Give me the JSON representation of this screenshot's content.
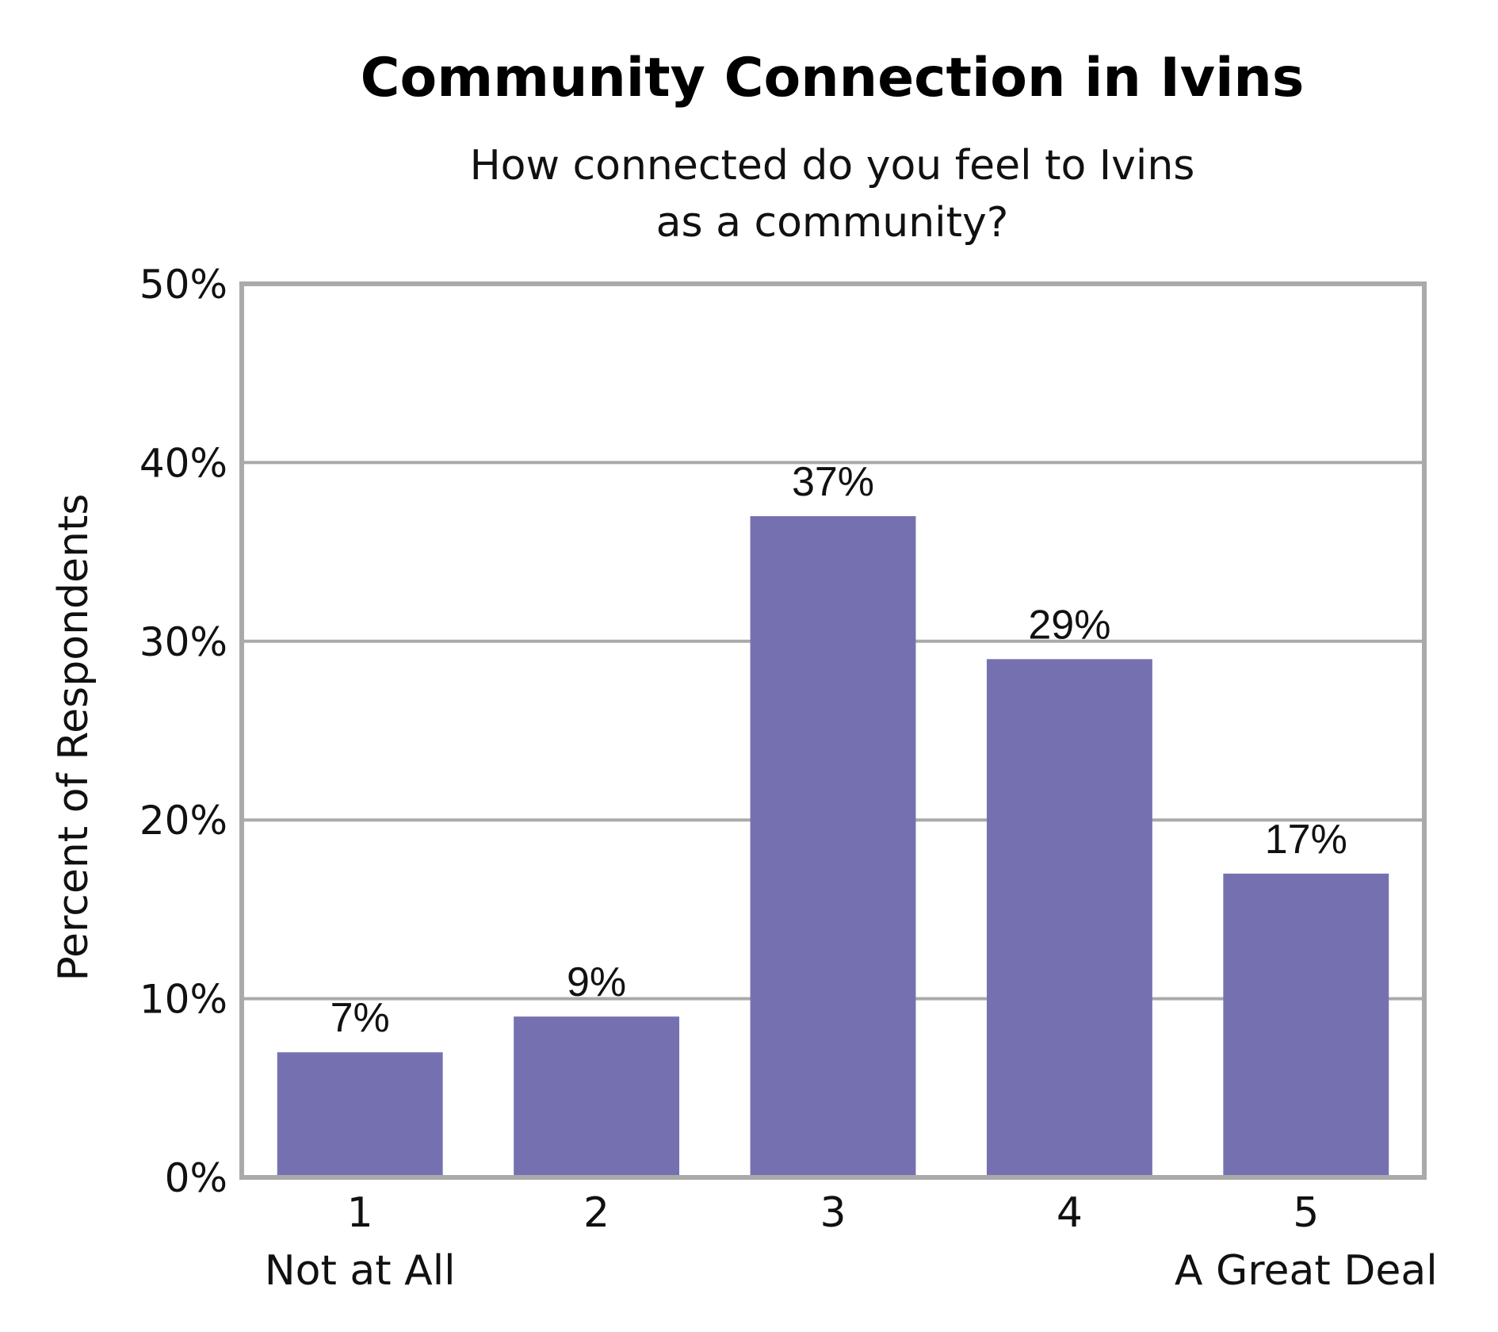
{
  "chart_data": {
    "type": "bar",
    "title": "Community Connection in Ivins",
    "subtitle_lines": [
      "How connected do you feel to Ivins",
      "as a community?"
    ],
    "ylabel": "Percent of Respondents",
    "xlabel": "",
    "categories": [
      "1",
      "2",
      "3",
      "4",
      "5"
    ],
    "category_sublabels": [
      "Not at All",
      "",
      "",
      "",
      "A Great Deal"
    ],
    "values": [
      7,
      9,
      37,
      29,
      17
    ],
    "value_labels": [
      "7%",
      "9%",
      "37%",
      "29%",
      "17%"
    ],
    "ylim": [
      0,
      50
    ],
    "yticks": [
      0,
      10,
      20,
      30,
      40,
      50
    ],
    "ytick_labels": [
      "0%",
      "10%",
      "20%",
      "30%",
      "40%",
      "50%"
    ],
    "grid": true,
    "bar_color": "#7571b1",
    "grid_color": "#aaaaaa",
    "frame_color": "#aaaaaa"
  }
}
